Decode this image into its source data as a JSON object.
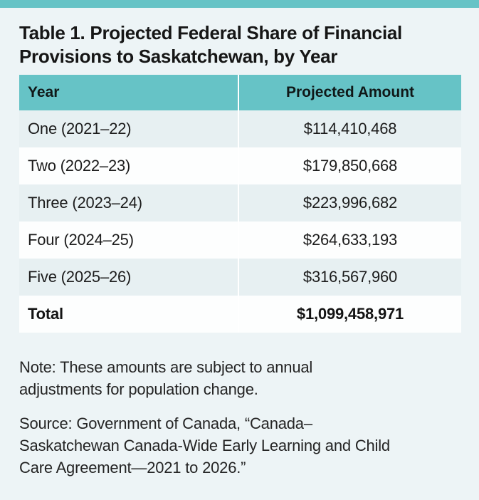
{
  "page": {
    "background_color": "#edf4f6",
    "accent_teal": "#66c3c6",
    "light_row_color": "#e7f0f2",
    "white_row_color": "#fdfefe"
  },
  "title": {
    "lines": [
      "Table 1. Projected Federal Share of Financial",
      "Provisions to Saskatchewan, by Year"
    ]
  },
  "table": {
    "columns": [
      "Year",
      "Projected Amount"
    ],
    "rows": [
      {
        "year": "One (2021–22)",
        "amount": "$114,410,468"
      },
      {
        "year": "Two (2022–23)",
        "amount": "$179,850,668"
      },
      {
        "year": "Three (2023–24)",
        "amount": "$223,996,682"
      },
      {
        "year": "Four (2024–25)",
        "amount": "$264,633,193"
      },
      {
        "year": "Five (2025–26)",
        "amount": "$316,567,960"
      }
    ],
    "total": {
      "label": "Total",
      "amount": "$1,099,458,971"
    }
  },
  "note": {
    "lines": [
      "Note: These amounts are subject to annual",
      "adjustments for population change."
    ]
  },
  "source": {
    "lines": [
      "Source: Government of Canada, “Canada–",
      "Saskatchewan Canada-Wide Early Learning and Child",
      "Care Agreement—2021 to 2026.”"
    ]
  },
  "chart_data": {
    "type": "table",
    "title": "Table 1. Projected Federal Share of Financial Provisions to Saskatchewan, by Year",
    "columns": [
      "Year",
      "Projected Amount"
    ],
    "rows": [
      [
        "One (2021–22)",
        "$114,410,468"
      ],
      [
        "Two (2022–23)",
        "$179,850,668"
      ],
      [
        "Three (2023–24)",
        "$223,996,682"
      ],
      [
        "Four (2024–25)",
        "$264,633,193"
      ],
      [
        "Five (2025–26)",
        "$316,567,960"
      ]
    ],
    "total_row": [
      "Total",
      "$1,099,458,971"
    ],
    "values_numeric": [
      114410468,
      179850668,
      223996682,
      264633193,
      316567960
    ],
    "total_numeric": 1099458971,
    "note": "Note: These amounts are subject to annual adjustments for population change.",
    "source": "Source: Government of Canada, “Canada–Saskatchewan Canada-Wide Early Learning and Child Care Agreement—2021 to 2026.”"
  }
}
